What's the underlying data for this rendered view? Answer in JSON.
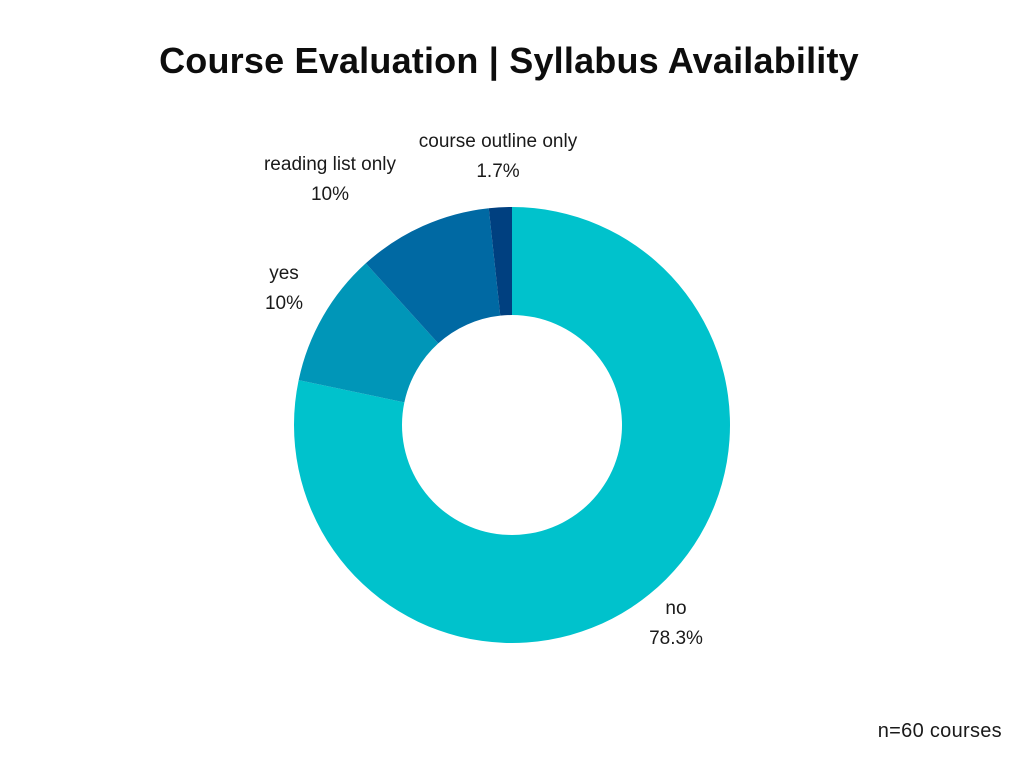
{
  "chart_data": {
    "type": "pie",
    "subtype": "donut",
    "title": "Course Evaluation | Syllabus Availability",
    "categories": [
      "no",
      "yes",
      "reading list only",
      "course outline only"
    ],
    "values": [
      78.3,
      10,
      10,
      1.7
    ],
    "value_labels": [
      "78.3%",
      "10%",
      "10%",
      "1.7%"
    ],
    "colors": [
      "#00c2cc",
      "#0096b8",
      "#0069a3",
      "#004080"
    ],
    "legend": "none",
    "footnote": "n=60 courses"
  }
}
